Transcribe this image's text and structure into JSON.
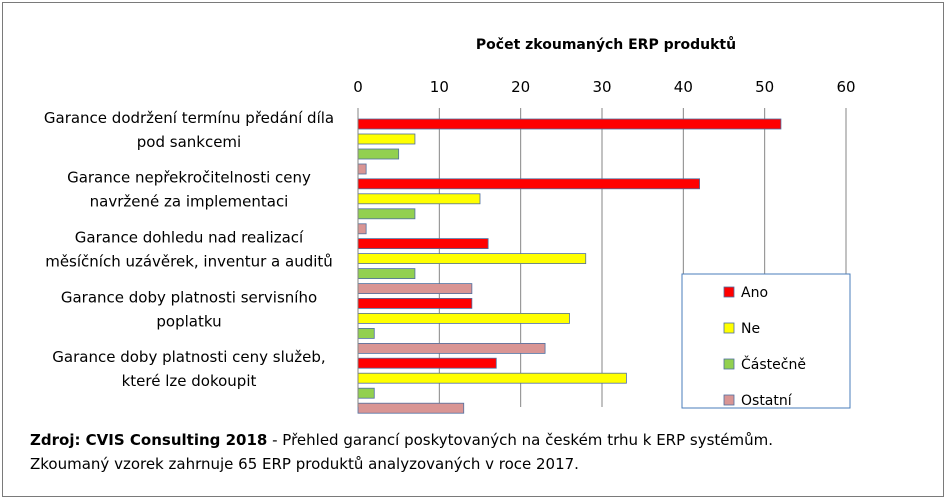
{
  "chart_data": {
    "type": "bar",
    "orientation": "horizontal",
    "title": "Počet zkoumaných ERP produktů",
    "xlim": [
      0,
      60
    ],
    "xticks": [
      0,
      10,
      20,
      30,
      40,
      50,
      60
    ],
    "grid": true,
    "legend_position": "bottom-right",
    "categories": [
      [
        "Garance dodržení termínu předání díla",
        "pod sankcemi"
      ],
      [
        "Garance nepřekročitelnosti ceny",
        "navržené za implementaci"
      ],
      [
        "Garance dohledu nad realizací",
        "měsíčních uzávěrek, inventur a auditů"
      ],
      [
        "Garance doby platnosti servisního",
        "poplatku"
      ],
      [
        "Garance doby platnosti ceny služeb,",
        "které lze dokoupit"
      ]
    ],
    "series": [
      {
        "name": "Ano",
        "color": "#ff0000",
        "values": [
          52,
          42,
          16,
          14,
          17
        ]
      },
      {
        "name": "Ne",
        "color": "#ffff00",
        "values": [
          7,
          15,
          28,
          26,
          33
        ]
      },
      {
        "name": "Částečně",
        "color": "#92d050",
        "values": [
          5,
          7,
          7,
          2,
          2
        ]
      },
      {
        "name": "Ostatní",
        "color": "#d99594",
        "values": [
          1,
          1,
          14,
          23,
          13
        ]
      }
    ]
  },
  "footer": {
    "source_label": "Zdroj: CVIS Consulting 2018",
    "line1_rest": " - Přehled garancí poskytovaných na českém trhu k ERP systémům.",
    "line2": "Zkoumaný vzorek zahrnuje 65 ERP produktů analyzovaných v roce 2017."
  }
}
